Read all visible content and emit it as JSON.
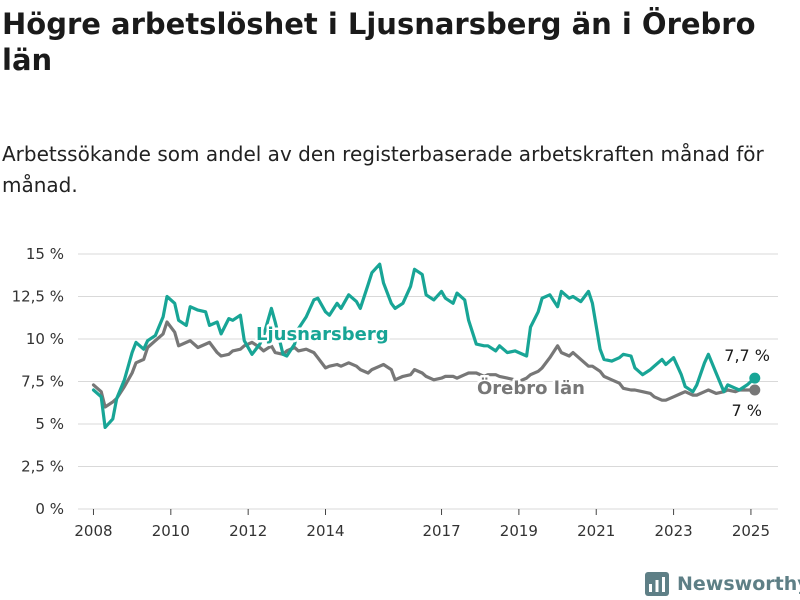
{
  "header": {
    "title": "Högre arbetslöshet i Ljusnarsberg än i Örebro län",
    "subtitle": "Arbetssökande som andel av den registerbaserade arbetskraften månad för månad."
  },
  "brand": {
    "name": "Newsworthy"
  },
  "colors": {
    "ljusnarsberg": "#18a596",
    "orebro": "#777777",
    "brand": "#5e7f86"
  },
  "chart_data": {
    "type": "line",
    "ylim": [
      0,
      15
    ],
    "xlim": [
      2007.6,
      2025.7
    ],
    "y_ticks": [
      {
        "value": 0,
        "label": "0 %"
      },
      {
        "value": 2.5,
        "label": "2,5 %"
      },
      {
        "value": 5,
        "label": "5 %"
      },
      {
        "value": 7.5,
        "label": "7,5 %"
      },
      {
        "value": 10,
        "label": "10 %"
      },
      {
        "value": 12.5,
        "label": "12,5 %"
      },
      {
        "value": 15,
        "label": "15 %"
      }
    ],
    "x_ticks": [
      {
        "value": 2008,
        "label": "2008"
      },
      {
        "value": 2010,
        "label": "2010"
      },
      {
        "value": 2012,
        "label": "2012"
      },
      {
        "value": 2014,
        "label": "2014"
      },
      {
        "value": 2017,
        "label": "2017"
      },
      {
        "value": 2019,
        "label": "2019"
      },
      {
        "value": 2021,
        "label": "2021"
      },
      {
        "value": 2023,
        "label": "2023"
      },
      {
        "value": 2025,
        "label": "2025"
      }
    ],
    "series": [
      {
        "name": "Ljusnarsberg",
        "x": [
          2008.0,
          2008.2,
          2008.3,
          2008.5,
          2008.6,
          2008.8,
          2009.0,
          2009.1,
          2009.3,
          2009.4,
          2009.6,
          2009.8,
          2009.9,
          2010.1,
          2010.2,
          2010.4,
          2010.5,
          2010.7,
          2010.9,
          2011.0,
          2011.2,
          2011.3,
          2011.5,
          2011.6,
          2011.8,
          2011.9,
          2012.1,
          2012.3,
          2012.4,
          2012.6,
          2012.7,
          2012.9,
          2013.0,
          2013.2,
          2013.3,
          2013.5,
          2013.7,
          2013.8,
          2014.0,
          2014.1,
          2014.3,
          2014.4,
          2014.6,
          2014.8,
          2014.9,
          2015.1,
          2015.2,
          2015.4,
          2015.5,
          2015.7,
          2015.8,
          2016.0,
          2016.2,
          2016.3,
          2016.5,
          2016.6,
          2016.8,
          2017.0,
          2017.1,
          2017.3,
          2017.4,
          2017.6,
          2017.7,
          2017.9,
          2018.1,
          2018.2,
          2018.4,
          2018.5,
          2018.7,
          2018.9,
          2019.0,
          2019.2,
          2019.3,
          2019.5,
          2019.6,
          2019.8,
          2020.0,
          2020.1,
          2020.3,
          2020.4,
          2020.6,
          2020.8,
          2020.9,
          2021.1,
          2021.2,
          2021.4,
          2021.6,
          2021.7,
          2021.9,
          2022.0,
          2022.2,
          2022.4,
          2022.5,
          2022.7,
          2022.8,
          2023.0,
          2023.2,
          2023.3,
          2023.5,
          2023.6,
          2023.8,
          2023.9,
          2024.1,
          2024.3,
          2024.4,
          2024.6,
          2024.7,
          2024.9,
          2025.1
        ],
        "values": [
          7.0,
          6.6,
          4.8,
          5.3,
          6.5,
          7.6,
          9.2,
          9.8,
          9.4,
          9.9,
          10.2,
          11.3,
          12.5,
          12.1,
          11.1,
          10.8,
          11.9,
          11.7,
          11.6,
          10.8,
          11.0,
          10.3,
          11.2,
          11.1,
          11.4,
          9.9,
          9.1,
          9.7,
          10.2,
          11.8,
          11.0,
          9.1,
          9.0,
          9.7,
          10.6,
          11.3,
          12.3,
          12.4,
          11.6,
          11.4,
          12.1,
          11.8,
          12.6,
          12.2,
          11.8,
          13.2,
          13.9,
          14.4,
          13.3,
          12.1,
          11.8,
          12.1,
          13.1,
          14.1,
          13.8,
          12.6,
          12.3,
          12.8,
          12.4,
          12.1,
          12.7,
          12.3,
          11.1,
          9.7,
          9.6,
          9.6,
          9.3,
          9.6,
          9.2,
          9.3,
          9.2,
          9.0,
          10.7,
          11.6,
          12.4,
          12.6,
          11.9,
          12.8,
          12.4,
          12.5,
          12.2,
          12.8,
          12.1,
          9.4,
          8.8,
          8.7,
          8.9,
          9.1,
          9.0,
          8.3,
          7.9,
          8.2,
          8.4,
          8.8,
          8.5,
          8.9,
          7.9,
          7.2,
          6.9,
          7.3,
          8.6,
          9.1,
          8.0,
          6.9,
          7.3,
          7.1,
          7.0,
          7.3,
          7.7
        ]
      },
      {
        "name": "Örebro län",
        "x": [
          2008.0,
          2008.2,
          2008.3,
          2008.5,
          2008.6,
          2008.8,
          2009.0,
          2009.1,
          2009.3,
          2009.4,
          2009.6,
          2009.8,
          2009.9,
          2010.1,
          2010.2,
          2010.4,
          2010.5,
          2010.7,
          2010.9,
          2011.0,
          2011.2,
          2011.3,
          2011.5,
          2011.6,
          2011.8,
          2011.9,
          2012.1,
          2012.3,
          2012.4,
          2012.6,
          2012.7,
          2012.9,
          2013.0,
          2013.2,
          2013.3,
          2013.5,
          2013.7,
          2013.8,
          2014.0,
          2014.1,
          2014.3,
          2014.4,
          2014.6,
          2014.8,
          2014.9,
          2015.1,
          2015.2,
          2015.4,
          2015.5,
          2015.7,
          2015.8,
          2016.0,
          2016.2,
          2016.3,
          2016.5,
          2016.6,
          2016.8,
          2017.0,
          2017.1,
          2017.3,
          2017.4,
          2017.6,
          2017.7,
          2017.9,
          2018.1,
          2018.2,
          2018.4,
          2018.5,
          2018.7,
          2018.9,
          2019.0,
          2019.2,
          2019.3,
          2019.5,
          2019.6,
          2019.8,
          2020.0,
          2020.1,
          2020.3,
          2020.4,
          2020.6,
          2020.8,
          2020.9,
          2021.1,
          2021.2,
          2021.4,
          2021.6,
          2021.7,
          2021.9,
          2022.0,
          2022.2,
          2022.4,
          2022.5,
          2022.7,
          2022.8,
          2023.0,
          2023.2,
          2023.3,
          2023.5,
          2023.6,
          2023.8,
          2023.9,
          2024.1,
          2024.3,
          2024.4,
          2024.6,
          2024.7,
          2024.9,
          2025.1
        ],
        "values": [
          7.3,
          6.9,
          6.0,
          6.3,
          6.5,
          7.2,
          8.0,
          8.6,
          8.8,
          9.5,
          9.9,
          10.3,
          11.0,
          10.4,
          9.6,
          9.8,
          9.9,
          9.5,
          9.7,
          9.8,
          9.2,
          9.0,
          9.1,
          9.3,
          9.4,
          9.6,
          9.8,
          9.5,
          9.3,
          9.6,
          9.2,
          9.1,
          9.3,
          9.5,
          9.3,
          9.4,
          9.2,
          8.9,
          8.3,
          8.4,
          8.5,
          8.4,
          8.6,
          8.4,
          8.2,
          8.0,
          8.2,
          8.4,
          8.5,
          8.2,
          7.6,
          7.8,
          7.9,
          8.2,
          8.0,
          7.8,
          7.6,
          7.7,
          7.8,
          7.8,
          7.7,
          7.9,
          8.0,
          8.0,
          7.8,
          7.9,
          7.9,
          7.8,
          7.7,
          7.6,
          7.5,
          7.7,
          7.9,
          8.1,
          8.3,
          8.9,
          9.6,
          9.2,
          9.0,
          9.2,
          8.8,
          8.4,
          8.4,
          8.1,
          7.8,
          7.6,
          7.4,
          7.1,
          7.0,
          7.0,
          6.9,
          6.8,
          6.6,
          6.4,
          6.4,
          6.6,
          6.8,
          6.9,
          6.7,
          6.7,
          6.9,
          7.0,
          6.8,
          6.9,
          7.0,
          6.9,
          7.0,
          7.0,
          7.0
        ]
      }
    ],
    "series_labels": [
      {
        "text": "Ljusnarsberg",
        "series": "Ljusnarsberg"
      },
      {
        "text": "Örebro län",
        "series": "Örebro län"
      }
    ],
    "end_labels": [
      {
        "text": "7,7 %",
        "series": "Ljusnarsberg"
      },
      {
        "text": "7 %",
        "series": "Örebro län"
      }
    ]
  }
}
